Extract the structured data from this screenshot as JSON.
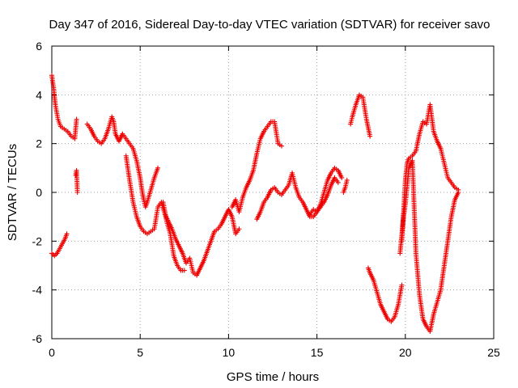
{
  "chart_data": {
    "type": "scatter",
    "title": "Day 347 of 2016, Sidereal Day-to-day VTEC variation (SDTVAR) for receiver savo",
    "xlabel": "GPS time / hours",
    "ylabel": "SDTVAR / TECUs",
    "xlim": [
      0,
      25
    ],
    "ylim": [
      -6,
      6
    ],
    "xticks": [
      "0",
      "5",
      "10",
      "15",
      "20",
      "25"
    ],
    "yticks": [
      "-6",
      "-4",
      "-2",
      "0",
      "2",
      "4",
      "6"
    ],
    "grid": true,
    "marker": "plus",
    "color": "#ee0000",
    "series": [
      {
        "x": [
          0.0,
          0.1,
          0.2,
          0.35,
          0.5,
          0.7,
          0.9,
          1.1,
          1.3,
          1.4
        ],
        "y": [
          4.8,
          4.3,
          3.6,
          3.0,
          2.7,
          2.6,
          2.5,
          2.3,
          2.2,
          3.0
        ]
      },
      {
        "x": [
          0.0,
          0.15,
          0.3,
          0.45,
          0.6,
          0.75,
          0.85
        ],
        "y": [
          -2.5,
          -2.6,
          -2.5,
          -2.3,
          -2.1,
          -1.9,
          -1.7
        ]
      },
      {
        "x": [
          1.35,
          1.4,
          1.45
        ],
        "y": [
          0.7,
          0.9,
          0.0
        ]
      },
      {
        "x": [
          2.0,
          2.2,
          2.4,
          2.6,
          2.8,
          3.0,
          3.2,
          3.4,
          3.5,
          3.6,
          3.8,
          4.0,
          4.2,
          4.4,
          4.6,
          4.8,
          5.0,
          5.1,
          5.2,
          5.3,
          5.4,
          5.6,
          5.8,
          6.0
        ],
        "y": [
          2.8,
          2.6,
          2.3,
          2.1,
          2.0,
          2.2,
          2.6,
          3.1,
          2.9,
          2.4,
          2.1,
          2.4,
          2.2,
          2.0,
          1.8,
          1.3,
          0.6,
          0.1,
          -0.3,
          -0.6,
          -0.4,
          0.1,
          0.6,
          1.0
        ]
      },
      {
        "x": [
          4.2,
          4.4,
          4.6,
          4.8,
          5.0,
          5.2,
          5.4,
          5.6,
          5.8,
          6.0,
          6.2,
          6.4,
          6.6,
          6.8,
          7.0,
          7.2,
          7.4,
          7.6,
          7.8,
          8.0,
          8.2,
          8.4,
          8.6,
          8.8,
          9.0,
          9.2,
          9.4,
          9.6,
          9.8,
          10.0,
          10.2,
          10.4,
          10.6
        ],
        "y": [
          1.5,
          0.5,
          -0.4,
          -1.0,
          -1.4,
          -1.6,
          -1.7,
          -1.6,
          -1.5,
          -0.6,
          -0.4,
          -0.9,
          -1.2,
          -1.5,
          -1.9,
          -2.2,
          -2.5,
          -2.9,
          -2.7,
          -3.3,
          -3.4,
          -3.1,
          -2.8,
          -2.4,
          -2.0,
          -1.6,
          -1.5,
          -1.3,
          -1.0,
          -0.7,
          -1.0,
          -1.7,
          -1.5
        ]
      },
      {
        "x": [
          6.3,
          6.5,
          6.7,
          6.9,
          7.1,
          7.3,
          7.5
        ],
        "y": [
          -0.4,
          -1.2,
          -1.7,
          -2.6,
          -3.0,
          -3.2,
          -3.2
        ]
      },
      {
        "x": [
          10.2,
          10.4,
          10.6,
          10.8,
          11.0,
          11.2,
          11.4,
          11.6,
          11.8,
          12.0,
          12.2,
          12.4,
          12.6,
          12.8,
          13.0
        ],
        "y": [
          -0.6,
          -0.3,
          -0.8,
          -0.2,
          0.2,
          0.5,
          0.9,
          1.6,
          2.2,
          2.5,
          2.7,
          2.9,
          2.9,
          2.0,
          1.9
        ]
      },
      {
        "x": [
          11.6,
          11.8,
          12.0,
          12.2,
          12.4,
          12.6,
          12.8,
          13.0,
          13.2,
          13.4,
          13.6,
          13.8,
          14.0,
          14.2,
          14.4,
          14.6,
          14.8,
          15.0,
          15.2,
          15.4,
          15.6,
          15.8,
          16.0,
          16.2,
          16.4
        ],
        "y": [
          -1.1,
          -0.8,
          -0.4,
          -0.2,
          0.1,
          0.2,
          0.0,
          -0.1,
          0.1,
          0.3,
          0.8,
          0.2,
          -0.2,
          -0.4,
          -0.7,
          -1.0,
          -1.0,
          -0.8,
          -0.5,
          0.0,
          0.5,
          0.8,
          1.0,
          0.9,
          0.6
        ]
      },
      {
        "x": [
          14.6,
          14.8,
          15.0,
          15.2,
          15.4,
          15.6,
          15.8,
          16.0,
          16.2
        ],
        "y": [
          -0.9,
          -0.7,
          -0.8,
          -0.6,
          -0.4,
          -0.1,
          0.3,
          0.6,
          0.4
        ]
      },
      {
        "x": [
          16.5,
          16.6,
          16.7
        ],
        "y": [
          0.0,
          0.2,
          0.5
        ]
      },
      {
        "x": [
          16.9,
          17.0,
          17.2,
          17.4,
          17.6,
          17.8,
          18.0
        ],
        "y": [
          2.8,
          3.1,
          3.6,
          4.0,
          3.9,
          3.0,
          2.3
        ]
      },
      {
        "x": [
          17.9,
          18.0,
          18.2,
          18.4,
          18.6,
          18.8,
          19.0,
          19.2,
          19.4,
          19.6,
          19.8
        ],
        "y": [
          -3.1,
          -3.3,
          -3.6,
          -4.1,
          -4.6,
          -4.9,
          -5.2,
          -5.3,
          -5.1,
          -4.6,
          -3.8
        ]
      },
      {
        "x": [
          19.8,
          19.9,
          20.0,
          20.1,
          20.2,
          20.4,
          20.6,
          20.8,
          21.0,
          21.2,
          21.4,
          21.6,
          21.8,
          22.0,
          22.2,
          22.4,
          22.6,
          22.8,
          23.0
        ],
        "y": [
          -2.0,
          -0.8,
          0.5,
          1.2,
          1.4,
          1.5,
          1.7,
          2.4,
          2.9,
          2.8,
          3.6,
          2.5,
          2.1,
          1.8,
          1.2,
          0.6,
          0.4,
          0.2,
          0.1
        ]
      },
      {
        "x": [
          19.7,
          19.9,
          20.0,
          20.2,
          20.4,
          20.6,
          20.8,
          21.0,
          21.2,
          21.4,
          21.6,
          21.8,
          22.0,
          22.1,
          22.2,
          22.4,
          22.6,
          22.8,
          23.0
        ],
        "y": [
          -2.5,
          -1.0,
          -0.5,
          1.0,
          1.3,
          -2.5,
          -4.2,
          -5.2,
          -5.5,
          -5.7,
          -5.0,
          -4.5,
          -4.0,
          -3.5,
          -3.0,
          -2.0,
          -1.0,
          -0.3,
          0.0
        ]
      }
    ]
  }
}
